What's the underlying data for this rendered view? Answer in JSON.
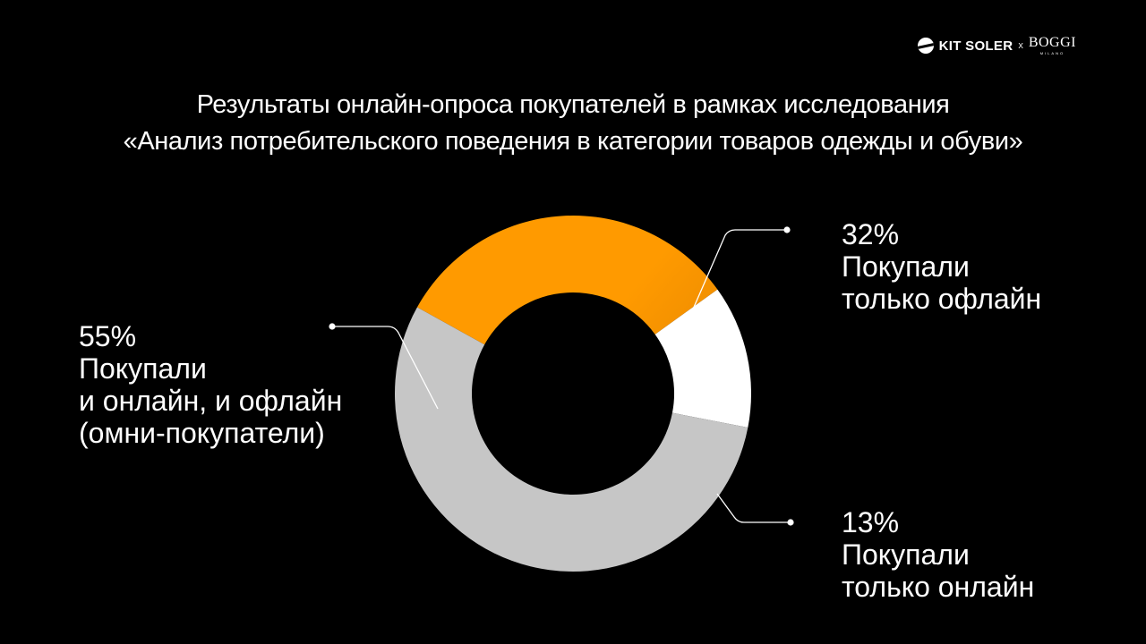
{
  "brand": {
    "kit_soler": "KIT SOLER",
    "separator": "x",
    "boggi": "BOGGI",
    "boggi_sub": "MILANO"
  },
  "title": {
    "line1": "Результаты онлайн-опроса покупателей в рамках исследования",
    "line2": "«Анализ потребительского поведения  в категории товаров одежды и обуви»"
  },
  "chart_data": {
    "type": "pie",
    "variant": "donut",
    "slices": [
      {
        "key": "offline",
        "value": 32,
        "percent_label": "32%",
        "label_lines": [
          "Покупали",
          "только офлайн"
        ],
        "color": "#FF9A00",
        "gradient_end": "#4A2C00"
      },
      {
        "key": "online",
        "value": 13,
        "percent_label": "13%",
        "label_lines": [
          "Покупали",
          "только онлайн"
        ],
        "color": "#FFFFFF"
      },
      {
        "key": "omni",
        "value": 55,
        "percent_label": "55%",
        "label_lines": [
          "Покупали",
          "и онлайн, и офлайн",
          "(омни-покупатели)"
        ],
        "color": "#C6C6C6"
      }
    ],
    "legend": "leader-line labels"
  },
  "colors": {
    "background": "#000000",
    "text": "#FFFFFF"
  }
}
